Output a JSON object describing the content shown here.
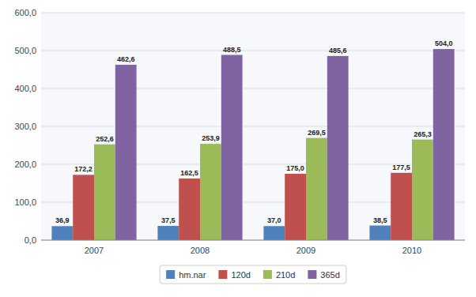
{
  "chart_data": {
    "type": "bar",
    "categories": [
      "2007",
      "2008",
      "2009",
      "2010"
    ],
    "series": [
      {
        "name": "hm.nar",
        "color": "#4f81bd",
        "values": [
          36.9,
          37.5,
          37.0,
          38.5
        ],
        "value_labels": [
          "36,9",
          "37,5",
          "37,0",
          "38,5"
        ]
      },
      {
        "name": "120d",
        "color": "#c0504d",
        "values": [
          172.2,
          162.5,
          175.0,
          177.5
        ],
        "value_labels": [
          "172,2",
          "162,5",
          "175,0",
          "177,5"
        ]
      },
      {
        "name": "210d",
        "color": "#9bbb59",
        "values": [
          252.6,
          253.9,
          269.5,
          265.3
        ],
        "value_labels": [
          "252,6",
          "253,9",
          "269,5",
          "265,3"
        ]
      },
      {
        "name": "365d",
        "color": "#8064a2",
        "values": [
          462.6,
          488.5,
          485.6,
          504.0
        ],
        "value_labels": [
          "462,6",
          "488,5",
          "485,6",
          "504,0"
        ]
      }
    ],
    "ylim": [
      0,
      600
    ],
    "yticks": [
      {
        "value": 0,
        "label": "0,0"
      },
      {
        "value": 100,
        "label": "100,0"
      },
      {
        "value": 200,
        "label": "200,0"
      },
      {
        "value": 300,
        "label": "300,0"
      },
      {
        "value": 400,
        "label": "400,0"
      },
      {
        "value": 500,
        "label": "500,0"
      },
      {
        "value": 600,
        "label": "600,0"
      }
    ],
    "grid": true,
    "legend": "bottom",
    "data_labels": true
  }
}
